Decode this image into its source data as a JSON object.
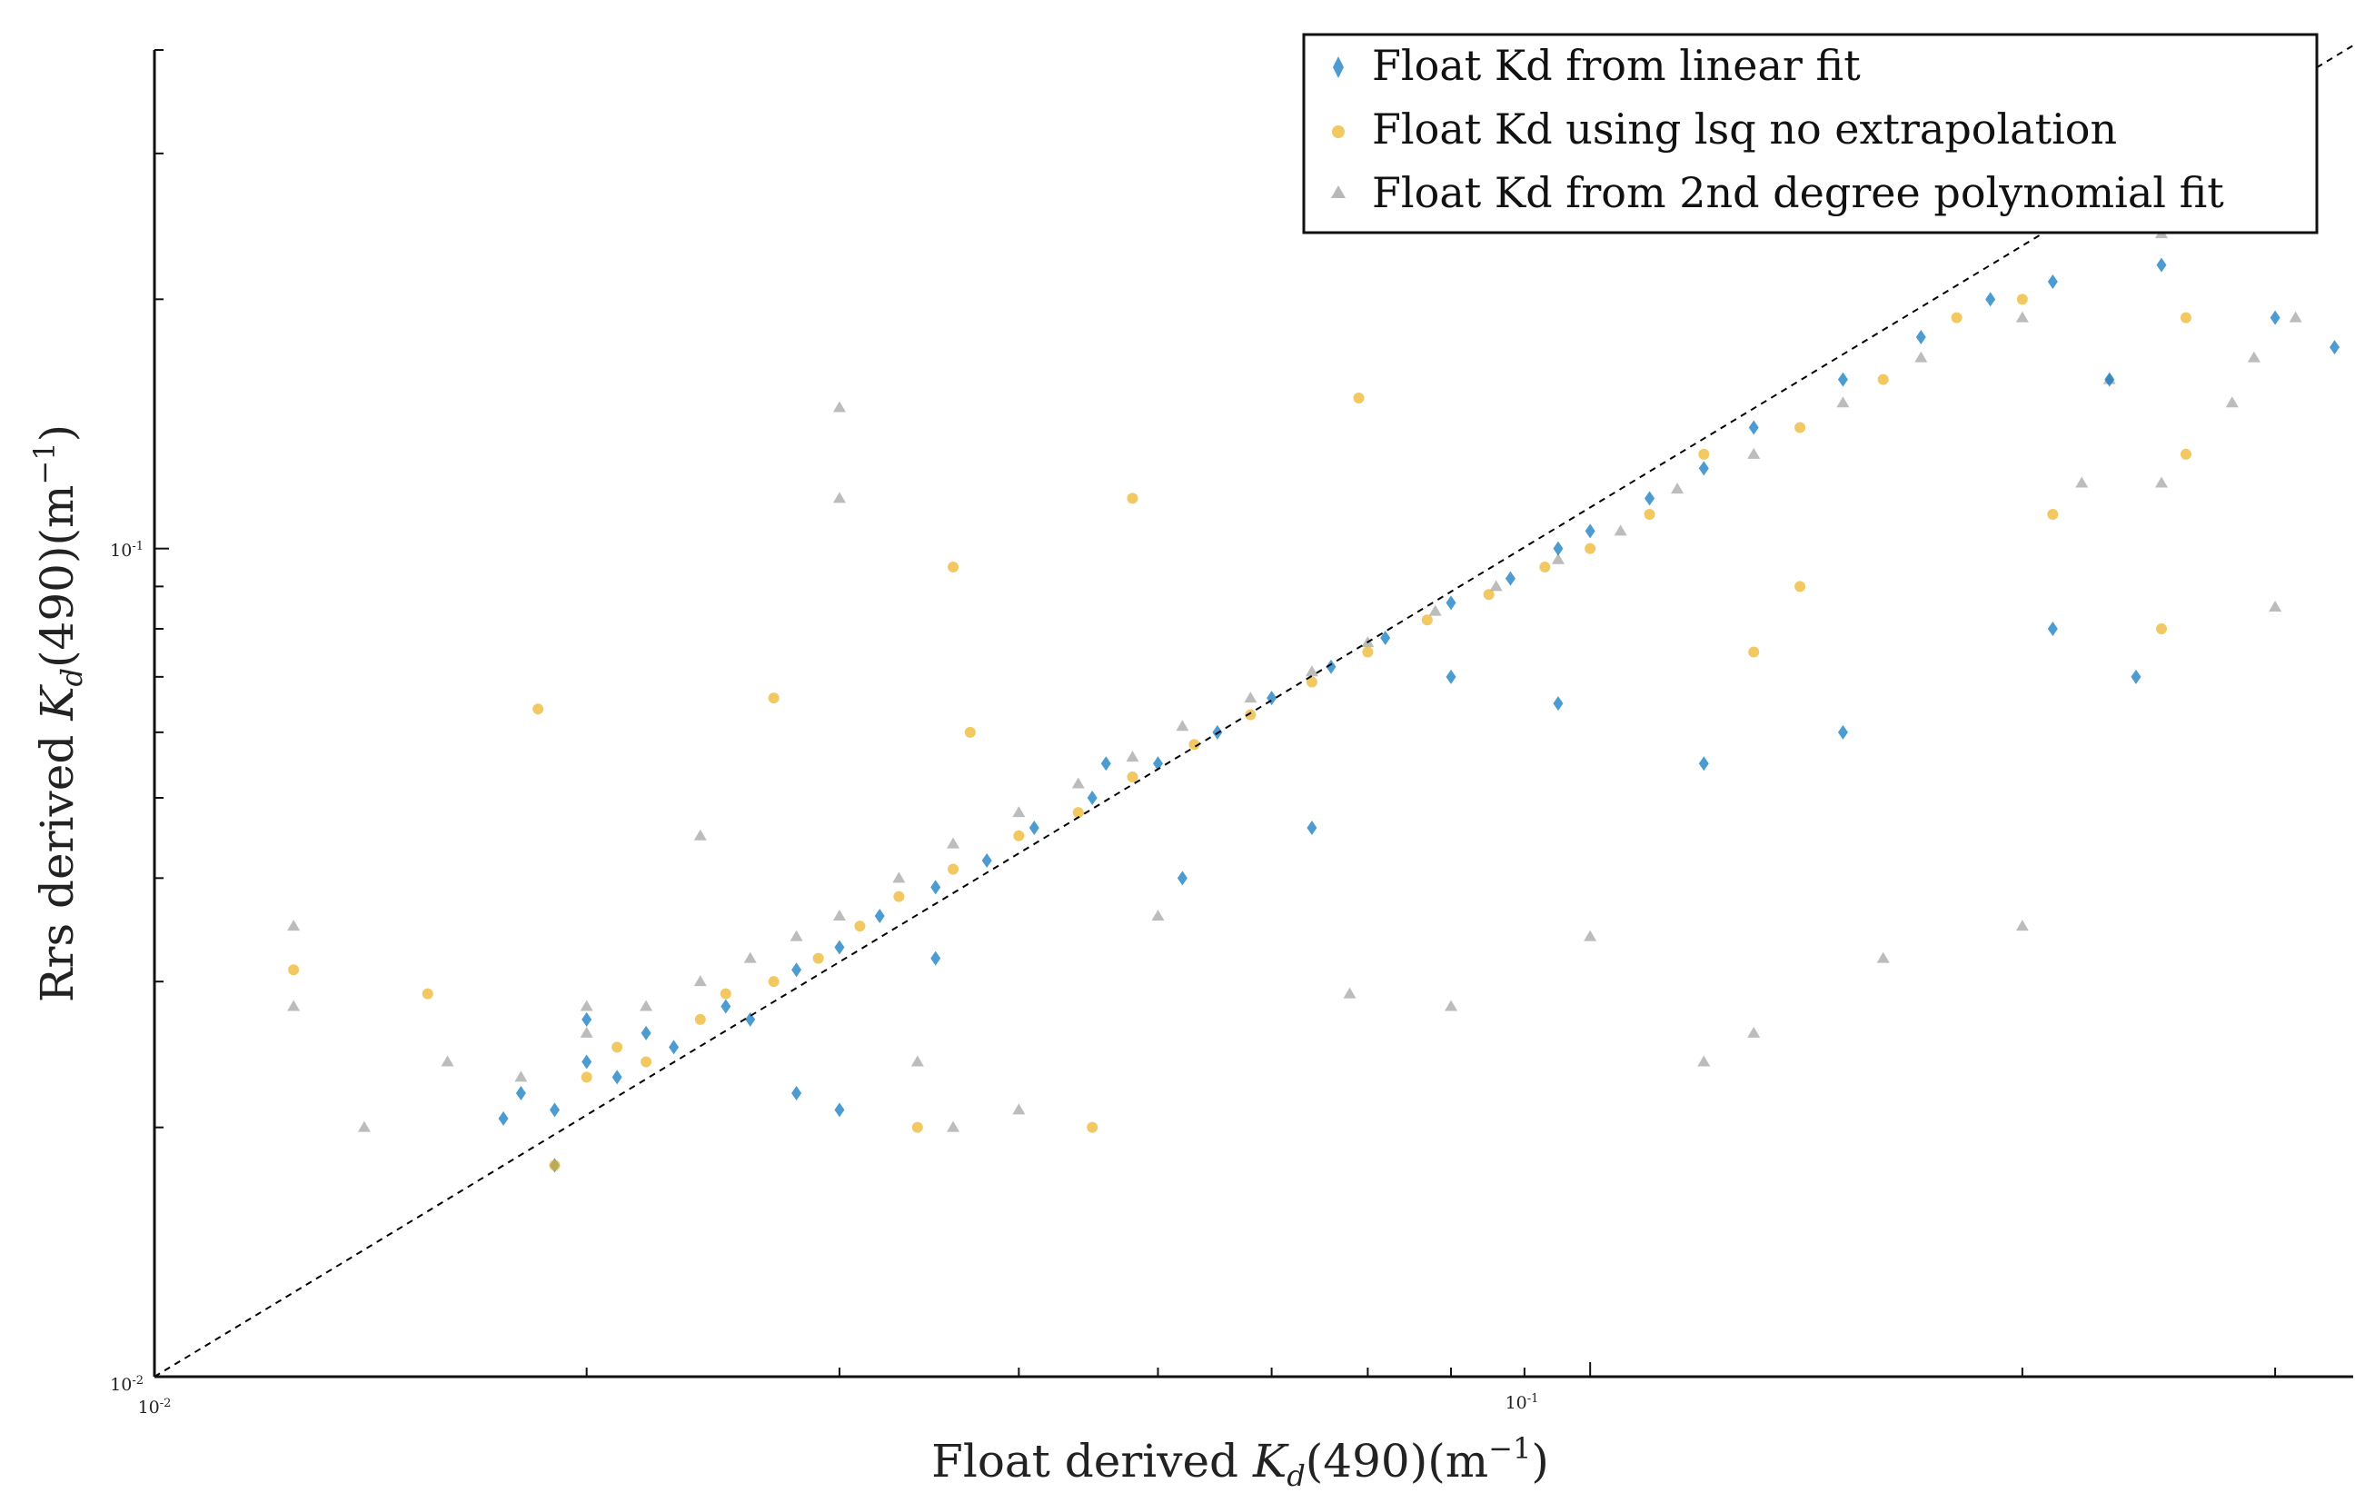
{
  "chart_data": {
    "type": "scatter",
    "xscale": "log",
    "yscale": "log",
    "xlim": [
      0.01,
      0.34
    ],
    "ylim": [
      0.01,
      0.4
    ],
    "xlabel_prefix": "Float derived ",
    "ylabel_prefix": "Rrs derived ",
    "label_quantity": "K",
    "label_subscript": "d",
    "label_suffix": "(490)(m",
    "label_exponent": "−1",
    "label_close": ")",
    "x_tick_labels": [
      {
        "base": "10",
        "exp": "-2",
        "value": 0.01
      },
      {
        "base": "10",
        "exp": "-1",
        "value": 0.1
      }
    ],
    "y_tick_labels": [
      {
        "base": "10",
        "exp": "-2",
        "value": 0.01
      },
      {
        "base": "10",
        "exp": "-1",
        "value": 0.1
      }
    ],
    "reference_line": "1:1 dashed",
    "legend_position": "top-right",
    "series": [
      {
        "name": "Float Kd from linear fit",
        "marker": "diamond",
        "color": "#0072BD",
        "points": [
          [
            0.0175,
            0.0205
          ],
          [
            0.018,
            0.022
          ],
          [
            0.019,
            0.021
          ],
          [
            0.02,
            0.024
          ],
          [
            0.021,
            0.023
          ],
          [
            0.022,
            0.026
          ],
          [
            0.023,
            0.025
          ],
          [
            0.025,
            0.028
          ],
          [
            0.026,
            0.027
          ],
          [
            0.028,
            0.031
          ],
          [
            0.03,
            0.033
          ],
          [
            0.032,
            0.036
          ],
          [
            0.035,
            0.039
          ],
          [
            0.038,
            0.042
          ],
          [
            0.041,
            0.046
          ],
          [
            0.045,
            0.05
          ],
          [
            0.05,
            0.055
          ],
          [
            0.055,
            0.06
          ],
          [
            0.06,
            0.066
          ],
          [
            0.066,
            0.072
          ],
          [
            0.072,
            0.078
          ],
          [
            0.08,
            0.086
          ],
          [
            0.088,
            0.092
          ],
          [
            0.095,
            0.1
          ],
          [
            0.1,
            0.105
          ],
          [
            0.11,
            0.115
          ],
          [
            0.12,
            0.125
          ],
          [
            0.13,
            0.14
          ],
          [
            0.15,
            0.16
          ],
          [
            0.17,
            0.18
          ],
          [
            0.19,
            0.2
          ],
          [
            0.21,
            0.21
          ],
          [
            0.23,
            0.16
          ],
          [
            0.25,
            0.22
          ],
          [
            0.3,
            0.19
          ],
          [
            0.33,
            0.175
          ],
          [
            0.24,
            0.07
          ],
          [
            0.21,
            0.08
          ],
          [
            0.15,
            0.06
          ],
          [
            0.12,
            0.055
          ],
          [
            0.046,
            0.055
          ],
          [
            0.035,
            0.032
          ],
          [
            0.03,
            0.021
          ],
          [
            0.028,
            0.022
          ],
          [
            0.02,
            0.027
          ],
          [
            0.019,
            0.018
          ],
          [
            0.052,
            0.04
          ],
          [
            0.064,
            0.046
          ],
          [
            0.08,
            0.07
          ],
          [
            0.095,
            0.065
          ]
        ]
      },
      {
        "name": "Float Kd using lsq no extrapolation",
        "marker": "circle",
        "color": "#EDB120",
        "points": [
          [
            0.0125,
            0.031
          ],
          [
            0.0155,
            0.029
          ],
          [
            0.0185,
            0.064
          ],
          [
            0.019,
            0.018
          ],
          [
            0.02,
            0.023
          ],
          [
            0.021,
            0.025
          ],
          [
            0.022,
            0.024
          ],
          [
            0.024,
            0.027
          ],
          [
            0.025,
            0.029
          ],
          [
            0.027,
            0.03
          ],
          [
            0.029,
            0.032
          ],
          [
            0.031,
            0.035
          ],
          [
            0.033,
            0.038
          ],
          [
            0.036,
            0.041
          ],
          [
            0.04,
            0.045
          ],
          [
            0.044,
            0.048
          ],
          [
            0.048,
            0.053
          ],
          [
            0.053,
            0.058
          ],
          [
            0.058,
            0.063
          ],
          [
            0.064,
            0.069
          ],
          [
            0.07,
            0.075
          ],
          [
            0.077,
            0.082
          ],
          [
            0.085,
            0.088
          ],
          [
            0.093,
            0.095
          ],
          [
            0.1,
            0.1
          ],
          [
            0.11,
            0.11
          ],
          [
            0.12,
            0.13
          ],
          [
            0.14,
            0.14
          ],
          [
            0.16,
            0.16
          ],
          [
            0.18,
            0.19
          ],
          [
            0.2,
            0.2
          ],
          [
            0.26,
            0.19
          ],
          [
            0.26,
            0.13
          ],
          [
            0.25,
            0.08
          ],
          [
            0.21,
            0.11
          ],
          [
            0.13,
            0.075
          ],
          [
            0.14,
            0.09
          ],
          [
            0.069,
            0.152
          ],
          [
            0.048,
            0.115
          ],
          [
            0.045,
            0.02
          ],
          [
            0.034,
            0.02
          ],
          [
            0.036,
            0.095
          ],
          [
            0.027,
            0.066
          ],
          [
            0.037,
            0.06
          ]
        ]
      },
      {
        "name": "Float Kd from 2nd degree polynomial fit",
        "marker": "triangle",
        "color": "#A6A6A6",
        "points": [
          [
            0.0125,
            0.035
          ],
          [
            0.0125,
            0.028
          ],
          [
            0.014,
            0.02
          ],
          [
            0.016,
            0.024
          ],
          [
            0.018,
            0.023
          ],
          [
            0.02,
            0.026
          ],
          [
            0.022,
            0.028
          ],
          [
            0.024,
            0.03
          ],
          [
            0.026,
            0.032
          ],
          [
            0.028,
            0.034
          ],
          [
            0.03,
            0.036
          ],
          [
            0.033,
            0.04
          ],
          [
            0.036,
            0.044
          ],
          [
            0.04,
            0.048
          ],
          [
            0.044,
            0.052
          ],
          [
            0.048,
            0.056
          ],
          [
            0.052,
            0.061
          ],
          [
            0.058,
            0.066
          ],
          [
            0.064,
            0.071
          ],
          [
            0.07,
            0.077
          ],
          [
            0.078,
            0.084
          ],
          [
            0.086,
            0.09
          ],
          [
            0.095,
            0.097
          ],
          [
            0.105,
            0.105
          ],
          [
            0.115,
            0.118
          ],
          [
            0.13,
            0.13
          ],
          [
            0.15,
            0.15
          ],
          [
            0.17,
            0.17
          ],
          [
            0.2,
            0.19
          ],
          [
            0.23,
            0.16
          ],
          [
            0.25,
            0.24
          ],
          [
            0.28,
            0.15
          ],
          [
            0.29,
            0.17
          ],
          [
            0.31,
            0.19
          ],
          [
            0.3,
            0.085
          ],
          [
            0.25,
            0.12
          ],
          [
            0.22,
            0.12
          ],
          [
            0.2,
            0.035
          ],
          [
            0.16,
            0.032
          ],
          [
            0.13,
            0.026
          ],
          [
            0.12,
            0.024
          ],
          [
            0.1,
            0.034
          ],
          [
            0.08,
            0.028
          ],
          [
            0.068,
            0.029
          ],
          [
            0.05,
            0.036
          ],
          [
            0.04,
            0.021
          ],
          [
            0.036,
            0.02
          ],
          [
            0.034,
            0.024
          ],
          [
            0.03,
            0.148
          ],
          [
            0.03,
            0.115
          ],
          [
            0.024,
            0.045
          ],
          [
            0.02,
            0.028
          ]
        ]
      }
    ]
  }
}
